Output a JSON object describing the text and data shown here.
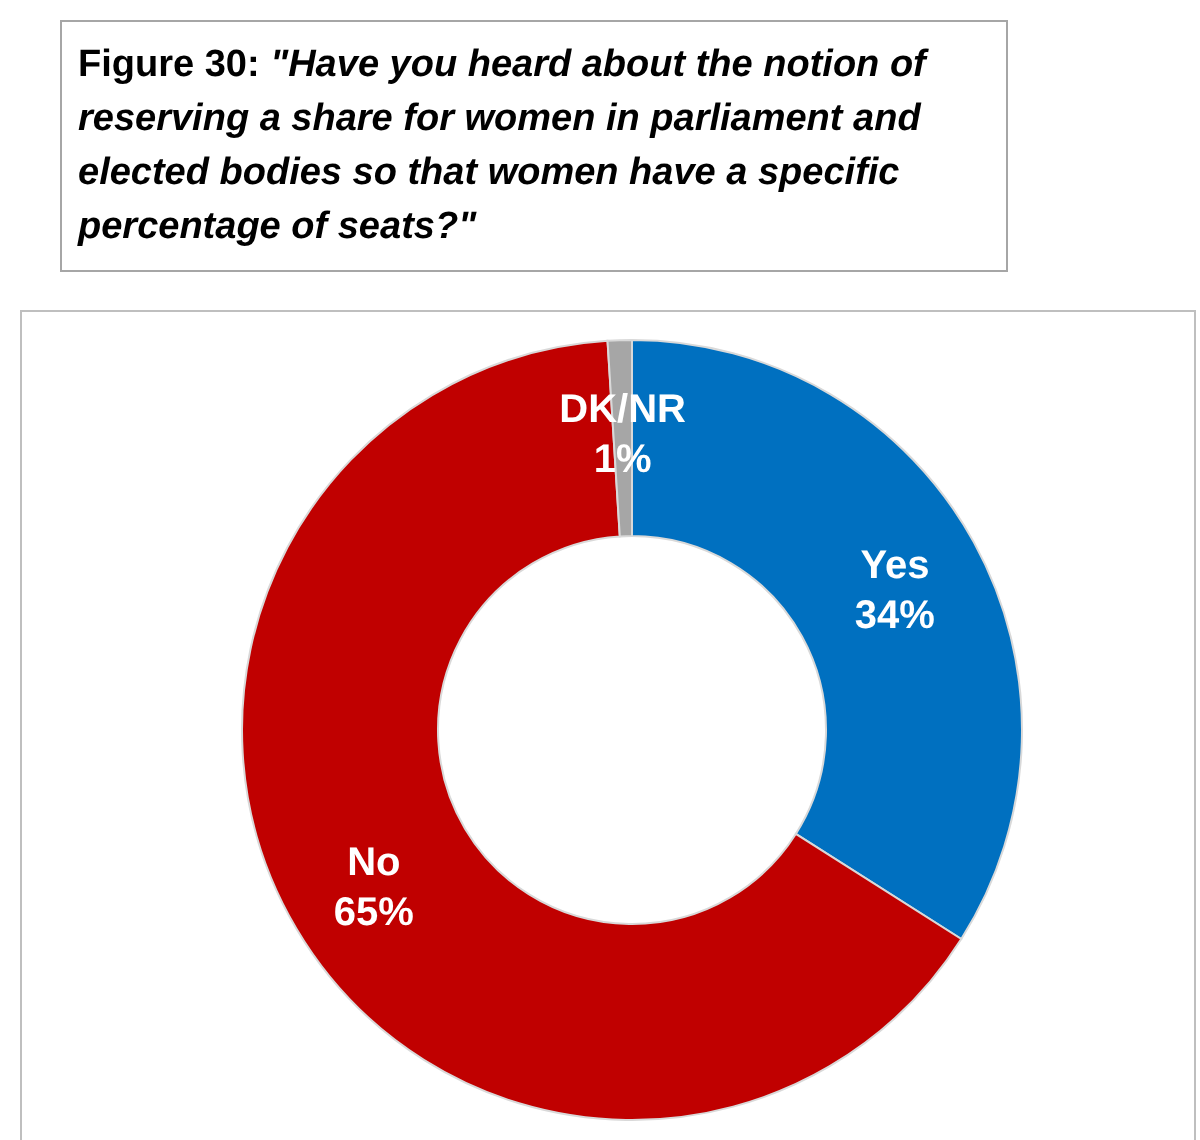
{
  "chart_data": {
    "type": "donut",
    "title": "Figure 30: \"Have you heard about the notion of reserving a share for women in parliament and elected bodies so that women have a specific percentage of seats?\"",
    "categories": [
      "Yes",
      "No",
      "DK/NR"
    ],
    "values": [
      34,
      65,
      1
    ],
    "colors": [
      "#0070c0",
      "#c00000",
      "#a6a6a6"
    ],
    "value_labels": [
      "34%",
      "65%",
      "1%"
    ]
  }
}
